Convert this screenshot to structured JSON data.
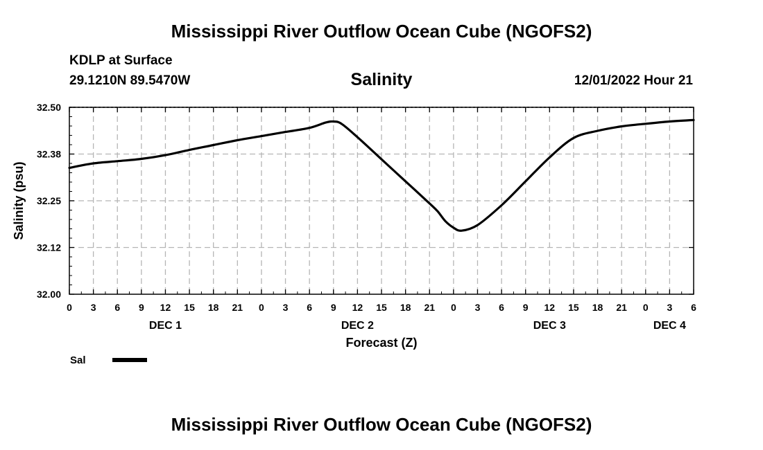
{
  "header": {
    "title": "Mississippi River Outflow Ocean Cube (NGOFS2)",
    "station": "KDLP at Surface",
    "coords": "29.1210N  89.5470W",
    "subtitle": "Salinity",
    "datetime": "12/01/2022 Hour 21"
  },
  "footer": {
    "title": "Mississippi River Outflow Ocean Cube (NGOFS2)"
  },
  "chart_data": {
    "type": "line",
    "title": "Salinity",
    "xlabel": "Forecast (Z)",
    "ylabel": "Salinity (psu)",
    "xlim": [
      0,
      78
    ],
    "ylim": [
      32.0,
      32.5
    ],
    "grid": true,
    "x_tick_values": [
      0,
      3,
      6,
      9,
      12,
      15,
      18,
      21,
      24,
      27,
      30,
      33,
      36,
      39,
      42,
      45,
      48,
      51,
      54,
      57,
      60,
      63,
      66,
      69,
      72,
      75,
      78
    ],
    "x_tick_labels": [
      "0",
      "3",
      "6",
      "9",
      "12",
      "15",
      "18",
      "21",
      "0",
      "3",
      "6",
      "9",
      "12",
      "15",
      "18",
      "21",
      "0",
      "3",
      "6",
      "9",
      "12",
      "15",
      "18",
      "21",
      "0",
      "3",
      "6"
    ],
    "y_ticks": [
      "32.00",
      "32.12",
      "32.25",
      "32.38",
      "32.50"
    ],
    "y_tick_values": [
      32.0,
      32.125,
      32.25,
      32.375,
      32.5
    ],
    "day_labels": [
      {
        "label": "DEC 1",
        "x": 12
      },
      {
        "label": "DEC 2",
        "x": 36
      },
      {
        "label": "DEC 3",
        "x": 60
      },
      {
        "label": "DEC 4",
        "x": 75
      }
    ],
    "legend": {
      "label": "Sal",
      "placement": "bottom-left"
    },
    "series": [
      {
        "name": "Sal",
        "color": "#000000",
        "x": [
          0,
          3,
          6,
          9,
          12,
          15,
          18,
          21,
          24,
          27,
          30,
          32,
          33,
          34,
          36,
          39,
          42,
          45,
          46,
          47,
          48,
          49,
          51,
          54,
          57,
          60,
          63,
          66,
          69,
          72,
          75,
          78
        ],
        "y": [
          32.338,
          32.35,
          32.356,
          32.362,
          32.372,
          32.386,
          32.399,
          32.412,
          32.423,
          32.434,
          32.445,
          32.459,
          32.462,
          32.456,
          32.42,
          32.361,
          32.302,
          32.243,
          32.222,
          32.195,
          32.178,
          32.17,
          32.185,
          32.238,
          32.302,
          32.366,
          32.418,
          32.437,
          32.449,
          32.456,
          32.462,
          32.466
        ]
      }
    ]
  }
}
